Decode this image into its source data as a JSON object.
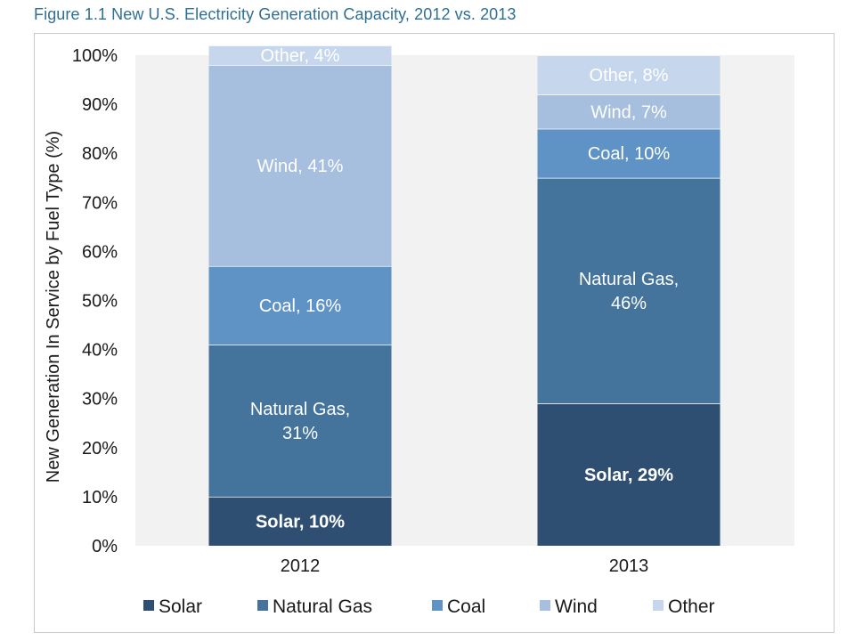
{
  "figure": {
    "title": "Figure 1.1  New U.S. Electricity Generation Capacity, 2012 vs. 2013"
  },
  "colors": {
    "plot_bg": "#f2f2f2",
    "Solar": "#2f4f72",
    "Natural Gas": "#44739b",
    "Coal": "#5f93c6",
    "Wind": "#a7bfdf",
    "Other": "#c6d7ed"
  },
  "chart_data": {
    "type": "bar",
    "stacked": true,
    "stack_mode": "percent",
    "title": "",
    "xlabel": "",
    "ylabel": "New Generation In Service by Fuel Type (%)",
    "ylim": [
      0,
      100
    ],
    "y_ticks": [
      "0%",
      "10%",
      "20%",
      "30%",
      "40%",
      "50%",
      "60%",
      "70%",
      "80%",
      "90%",
      "100%"
    ],
    "categories": [
      "2012",
      "2013"
    ],
    "grid": false,
    "legend_position": "bottom",
    "series": [
      {
        "name": "Solar",
        "values": [
          10,
          29
        ],
        "labels": [
          "Solar, 10%",
          "Solar, 29%"
        ],
        "bold": true
      },
      {
        "name": "Natural Gas",
        "values": [
          31,
          46
        ],
        "labels": [
          "Natural Gas,|31%",
          "Natural Gas,|46%"
        ],
        "bold": false
      },
      {
        "name": "Coal",
        "values": [
          16,
          10
        ],
        "labels": [
          "Coal, 16%",
          "Coal, 10%"
        ],
        "bold": false
      },
      {
        "name": "Wind",
        "values": [
          41,
          7
        ],
        "labels": [
          "Wind, 41%",
          "Wind, 7%"
        ],
        "bold": false
      },
      {
        "name": "Other",
        "values": [
          4,
          8
        ],
        "labels": [
          "Other, 4%",
          "Other, 8%"
        ],
        "bold": false
      }
    ]
  }
}
